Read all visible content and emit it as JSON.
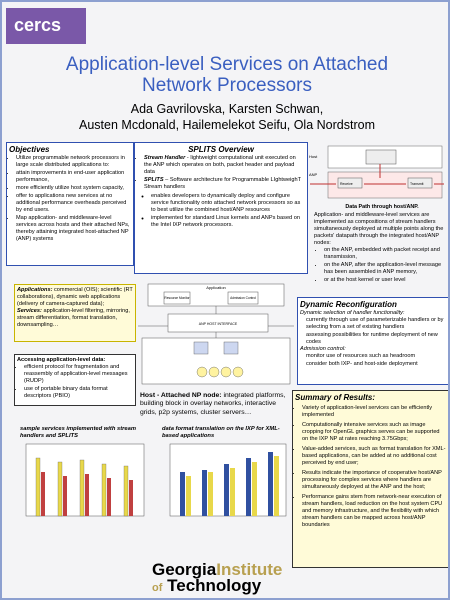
{
  "header": {
    "logo": "cercs",
    "title": "Application-level Services on Attached Network Processors",
    "authors": [
      "Ada Gavrilovska, Karsten Schwan,",
      "Austen Mcdonald, Hailemelekot Seifu, Ola Nordstrom"
    ]
  },
  "objectives": {
    "title": "Objectives",
    "items": [
      "Utilize programmable network processors in large scale distributed applications to:",
      "attain improvements in end-user application performance,",
      "more efficiently utilize host system capacity,",
      "offer to applications new services at no additional performance overheads perceived by end users.",
      "Map application- and middleware-level services across hosts and their attached NPs, thereby attaining integrated host-attached NP (ANP) systems"
    ]
  },
  "splits": {
    "title": "SPLITS Overview",
    "items": [
      {
        "term": "Stream Handler",
        "text": "- lightweight computational unit executed on the ANP which operates on both, packet header and payload data"
      },
      {
        "term": "SPLITS",
        "text": "– Software architecture for Programmable LIghtweighT Stream handlers"
      }
    ],
    "subitems": [
      "enables developers to dynamically deploy and configure service functionality onto attached network processors so as to best utilize the combined host/ANP resources",
      "implemented for standard Linux kernels and ANPs based on the Intel IXP network processors."
    ]
  },
  "datapath": {
    "labels": [
      "Host",
      "ANP",
      "Receive",
      "Transmit"
    ],
    "caption": "Data Path through host/ANP.",
    "text": "Application- and middleware-level services are implemented as compositions of stream handlers simultaneously deployed at multiple points along the packets' datapath through the integrated host/ANP nodes:",
    "items": [
      "on the ANP, embedded with packet receipt and transmission,",
      "on the ANP, after the application-level message has been assembled in ANP memory,",
      "or at the host kernel or user level"
    ]
  },
  "applications": {
    "term1": "Applications:",
    "text1": "commercial (OIS); scientific (RT collaborations), dynamic web applications (delivery of camera-captured data);",
    "term2": "Services:",
    "text2": "application-level filtering, mirroring, stream differentiation, format translation, downsampling…"
  },
  "architecture": {
    "labels": [
      "Application",
      "Resource Monitor",
      "Admission Control",
      "ANP HOST INTERFACE"
    ]
  },
  "accessing": {
    "title": "Accessing application-level data:",
    "items": [
      "efficient protocol for fragmentation and reassembly of application-level messages (RUDP)",
      "use of portable binary data format descriptors (PBIO)"
    ]
  },
  "reconfig": {
    "title": "Dynamic Reconfiguration",
    "sub1": "Dynamic selection of handler functionality:",
    "items1": [
      "currently through use of parameterizable handlers or by selecting from a set of existing handlers",
      "assessing possibilities for runtime deployment of new codes"
    ],
    "sub2": "Admission control:",
    "items2": [
      "monitor use of resources such as headroom",
      "consider both IXP- and host-side deployment"
    ]
  },
  "host": {
    "term": "Host - Attached NP node:",
    "text": "integrated platforms, building block in overlay networks, interactive grids, p2p systems, cluster servers…"
  },
  "summary": {
    "title": "Summary of Results:",
    "items": [
      "Variety of application-level services can be efficiently implemented",
      "Computationally intensive services such as image cropping for OpenGL graphics serves can be supported on the IXP NP at rates reaching 3.75Gbps;",
      "Value-added services, such as format translation for XML-based applications, can be added at no additional cost perceived by end user;",
      "Results indicate the importance of cooperative host/ANP processing for complex services where handlers are simultaneously deployed at the ANP and the host;",
      "Performance gains stem from network-near execution of stream handlers, load reduction on the host system CPU and memory infrastructure, and the flexibility with which stream handlers can be mapped across host/ANP boundaries"
    ]
  },
  "figures": {
    "left_caption": "sample services implemented with stream handlers and SPLITS",
    "right_caption": "data format translation on the IXP for XML-based applications"
  },
  "footer": {
    "words": [
      "Georgia",
      "Institute",
      "of",
      "Technology"
    ]
  }
}
